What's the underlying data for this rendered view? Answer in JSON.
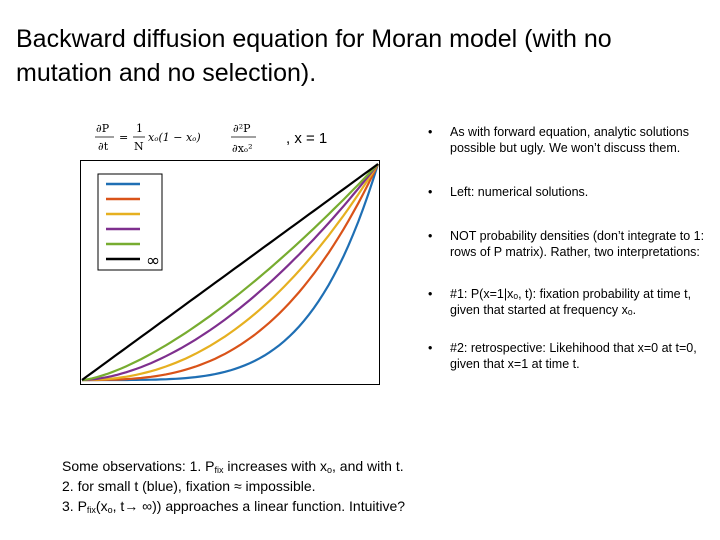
{
  "title": "Backward diffusion equation for Moran model (with no mutation and no selection).",
  "equation": {
    "lhs_num": "∂P",
    "lhs_den": "∂t",
    "equals": "=",
    "coef_num": "1",
    "coef_den": "N",
    "factor": "xₒ(1 − xₒ)",
    "rhs_num": "∂²P",
    "rhs_den": "∂xₒ²",
    "suffix": ", x = 1"
  },
  "legend": {
    "infinity_label": "∞"
  },
  "colors": {
    "blue": "#1f6fb4",
    "red": "#d95319",
    "yellow": "#e6b020",
    "purple": "#7e2f8e",
    "green": "#77ac30",
    "black": "#000000"
  },
  "bullets": [
    "As with forward equation, analytic solutions possible but ugly.  We won’t discuss them.",
    "Left: numerical solutions.",
    "NOT probability densities (don’t integrate to 1: rows of P matrix). Rather, two interpretations:",
    "#1: P(x=1|xₒ, t): fixation probability at time t, given that started at frequency xₒ.",
    "#2: retrospective: Likehihood that x=0 at t=0, given that x=1 at time t."
  ],
  "observations": {
    "l1_a": "Some observations: 1. P",
    "l1_sub1": "fix",
    "l1_b": " increases with x",
    "l1_sub2": "o",
    "l1_c": ", and with t.",
    "l2": "2. for small t (blue), fixation ≈ impossible.",
    "l3_a": "3. P",
    "l3_sub1": "fix",
    "l3_b": "(x",
    "l3_sub2": "o",
    "l3_c": ", t→ ∞)) approaches a linear function.  Intuitive?"
  }
}
